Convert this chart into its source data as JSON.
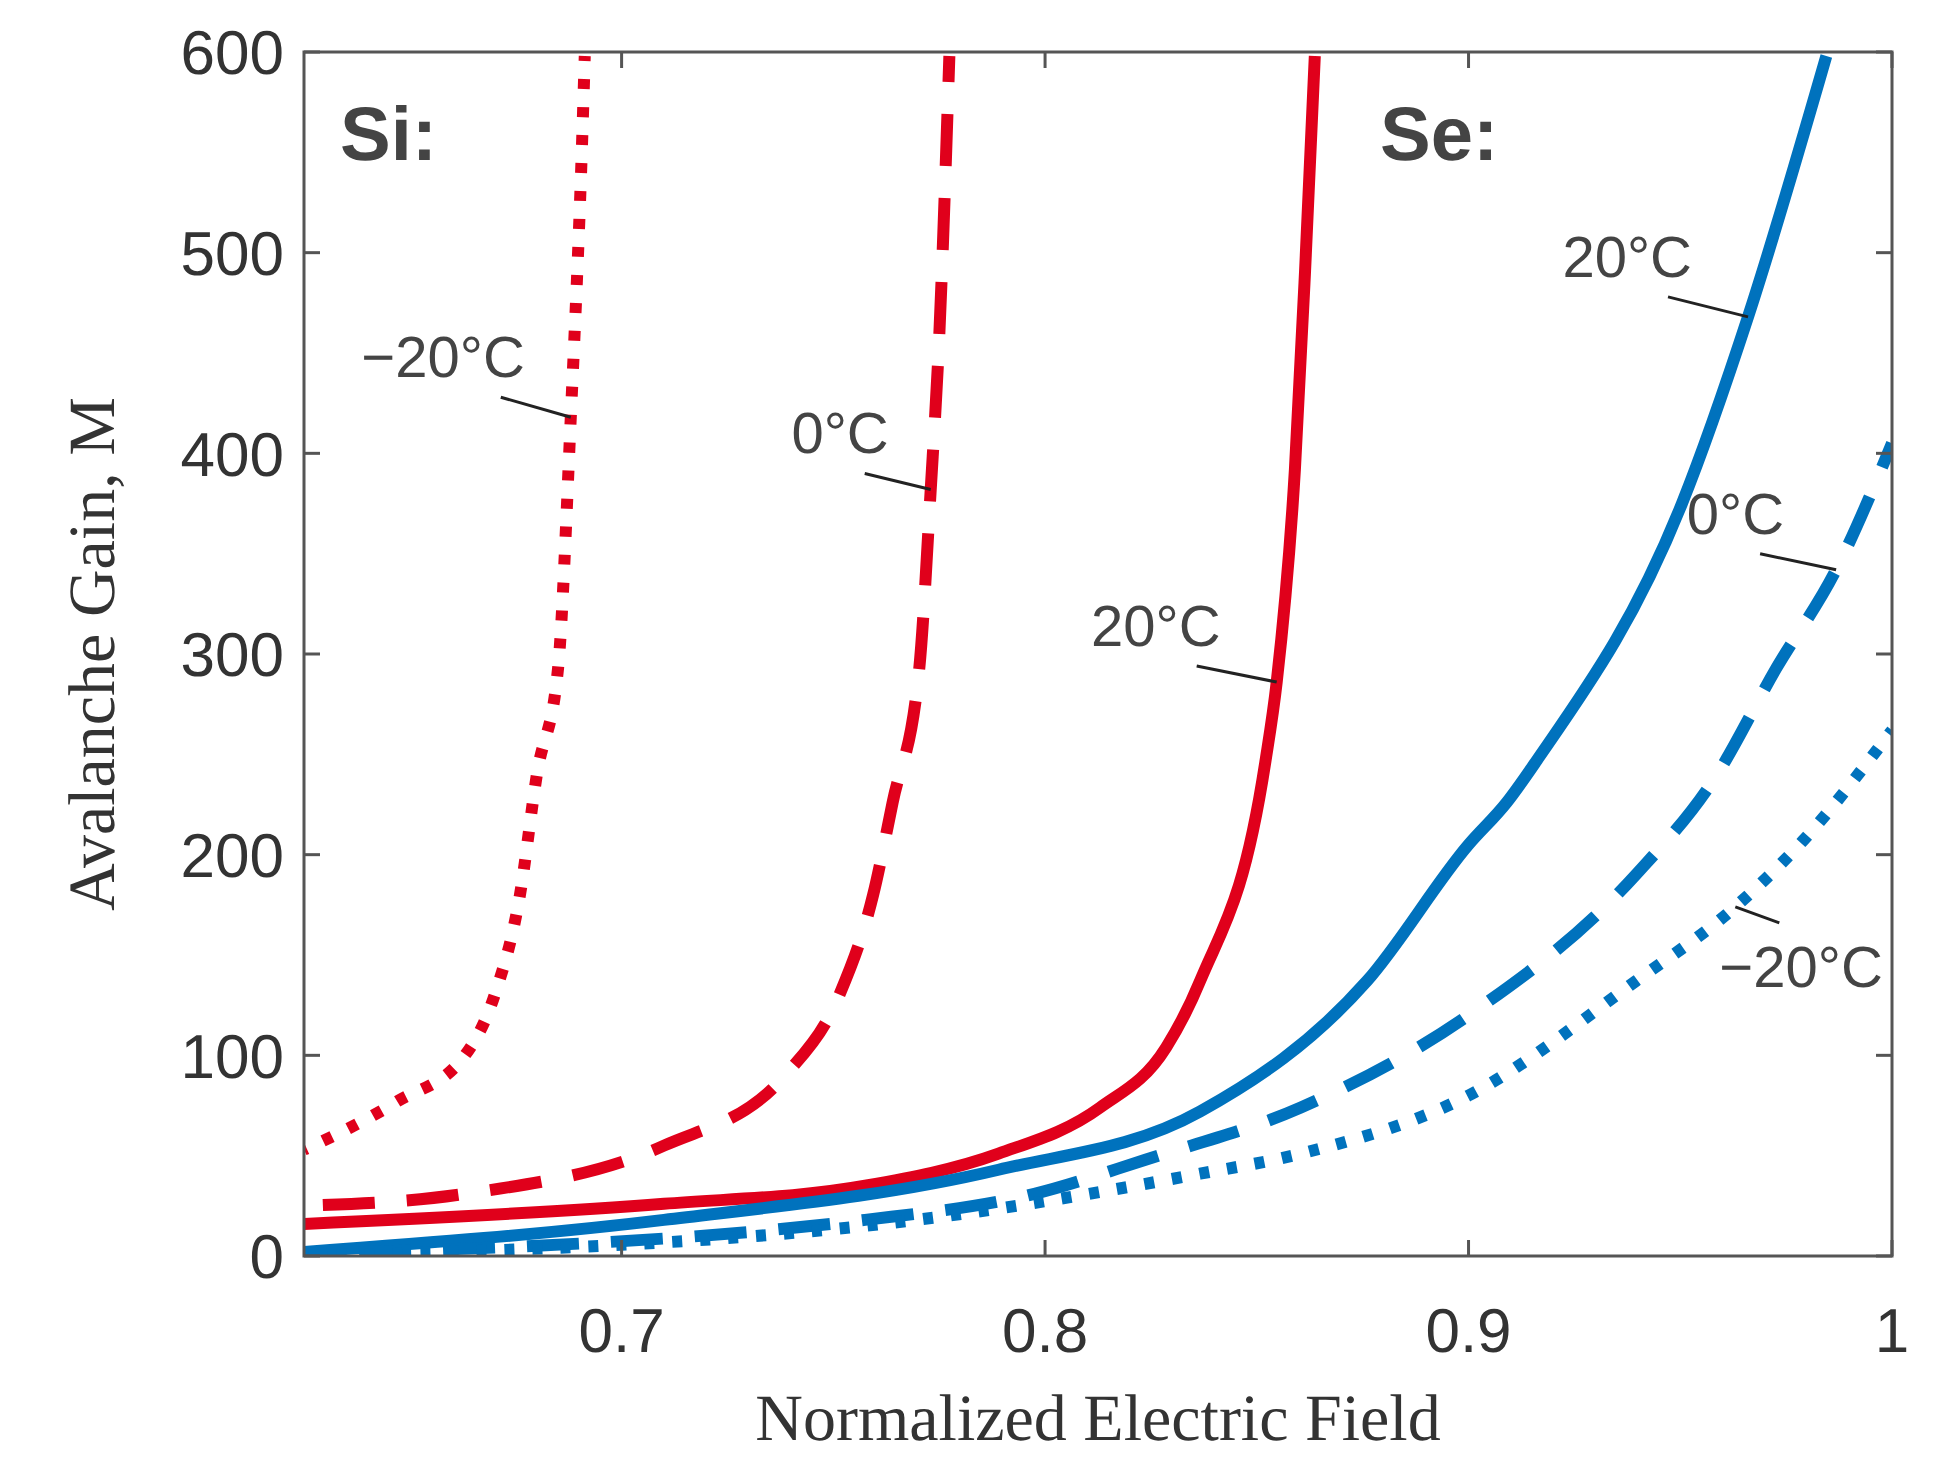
{
  "chart_data": {
    "type": "line",
    "xlabel": "Normalized Electric Field",
    "ylabel": "Avalanche Gain, M",
    "xlim": [
      0.625,
      1
    ],
    "ylim": [
      0,
      600
    ],
    "xticks": [
      0.7,
      0.8,
      0.9,
      1
    ],
    "yticks": [
      0,
      100,
      200,
      300,
      400,
      500,
      600
    ],
    "grid": false,
    "series": [
      {
        "color": "#e0001b",
        "line_style": "dotted",
        "x": [
          0.625,
          0.635,
          0.647,
          0.663,
          0.67,
          0.676,
          0.68,
          0.685,
          0.688,
          0.6907,
          0.6913
        ],
        "values": [
          53,
          63,
          77,
          100,
          130,
          180,
          240,
          293,
          418,
          557,
          598
        ]
      },
      {
        "color": "#e0001b",
        "line_style": "dashed",
        "x": [
          0.625,
          0.663,
          0.71,
          0.7386,
          0.7514,
          0.7594,
          0.764,
          0.7703,
          0.773,
          0.775,
          0.7774
        ],
        "values": [
          25,
          31,
          55,
          90,
          130,
          180,
          226,
          293,
          382,
          458,
          598
        ]
      },
      {
        "color": "#e0001b",
        "line_style": "solid",
        "x": [
          0.625,
          0.71,
          0.7575,
          0.789,
          0.813,
          0.8286,
          0.8366,
          0.852,
          0.8547,
          0.859,
          0.8614,
          0.8637
        ],
        "values": [
          16,
          26,
          35,
          51,
          74,
          104,
          137,
          246,
          286,
          392,
          491,
          598
        ]
      },
      {
        "color": "#0072bd",
        "line_style": "solid",
        "x": [
          0.625,
          0.71,
          0.789,
          0.8366,
          0.876,
          0.9,
          0.909,
          0.9158,
          0.9504,
          0.966,
          0.9845
        ],
        "values": [
          2,
          18,
          43,
          72,
          137,
          205,
          226,
          246,
          375,
          468,
          598
        ]
      },
      {
        "color": "#0072bd",
        "line_style": "dashed",
        "x": [
          0.625,
          0.7575,
          0.7975,
          0.8237,
          0.8604,
          0.9,
          0.9395,
          0.9584,
          0.9727,
          0.9868,
          1.0
        ],
        "values": [
          1,
          18,
          31,
          48,
          74,
          120,
          190,
          239,
          293,
          342,
          405
        ]
      },
      {
        "color": "#0072bd",
        "line_style": "dotted",
        "x": [
          0.625,
          0.7575,
          0.8366,
          0.8604,
          0.9,
          0.9395,
          0.963,
          0.979,
          1.0
        ],
        "values": [
          0,
          15,
          41,
          51,
          80,
          137,
          174,
          207,
          262
        ]
      }
    ],
    "annotations": [
      "Si:",
      "Se:",
      {
        "text": "−20°C",
        "x": 0.688,
        "y": 418
      },
      {
        "text": "0°C",
        "x": 0.773,
        "y": 382
      },
      {
        "text": "20°C",
        "x": 0.8547,
        "y": 286
      },
      {
        "text": "20°C",
        "x": 0.966,
        "y": 468
      },
      {
        "text": "0°C",
        "x": 0.9868,
        "y": 342
      },
      {
        "text": "−20°C",
        "x": 0.963,
        "y": 174
      }
    ]
  }
}
